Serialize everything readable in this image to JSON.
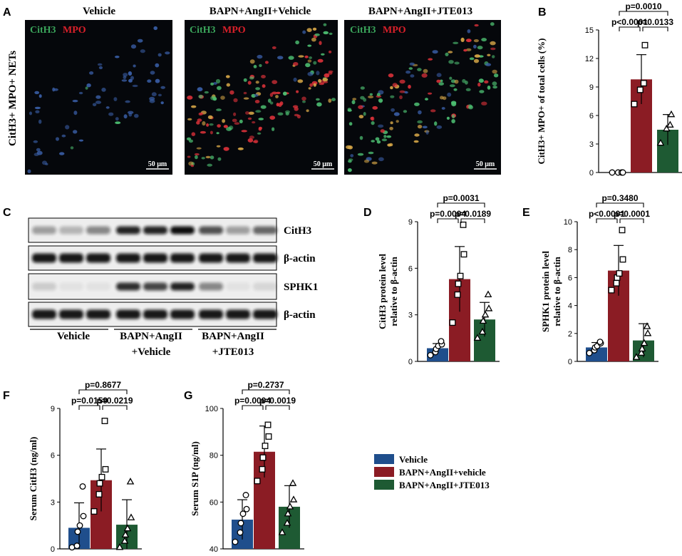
{
  "colors": {
    "vehicle": "#1f4e8c",
    "angii_vehicle": "#8b1c24",
    "jte013": "#1e5a33",
    "text": "#000000"
  },
  "panel_labels": [
    "A",
    "B",
    "C",
    "D",
    "E",
    "F",
    "G"
  ],
  "panel_a": {
    "row_label": "CitH3+ MPO+ NETs",
    "columns": [
      "Vehicle",
      "BAPN+AngII+Vehicle",
      "BAPN+AngII+JTE013"
    ],
    "stain_green": "CitH3",
    "stain_red": "MPO",
    "scalebar": "50 μm"
  },
  "panel_c": {
    "bands": [
      "CitH3",
      "β-actin",
      "SPHK1",
      "β-actin"
    ],
    "group_labels": [
      [
        "Vehicle"
      ],
      [
        "BAPN+AngII",
        "+Vehicle"
      ],
      [
        "BAPN+AngII",
        "+JTE013"
      ]
    ]
  },
  "legend": [
    "Vehicle",
    "BAPN+AngII+vehicle",
    "BAPN+AngII+JTE013"
  ],
  "chart_data": [
    {
      "id": "B",
      "type": "bar",
      "ylabel": "CitH3+ MPO+ of total cells (%)",
      "ylim": [
        0,
        15
      ],
      "yticks": [
        0,
        3,
        6,
        9,
        12,
        15
      ],
      "values": [
        0,
        9.8,
        4.5
      ],
      "errors": [
        0,
        2.6,
        1.6
      ],
      "points": [
        [
          0,
          0,
          0,
          0
        ],
        [
          7.2,
          8.7,
          9.4,
          13.4
        ],
        [
          3.1,
          4.6,
          5.0,
          6.1
        ]
      ],
      "comparisons": [
        {
          "text": "p=0.0010",
          "from": 0,
          "to": 2,
          "level": 2
        },
        {
          "text": "p<0.0001",
          "from": 0,
          "to": 1,
          "level": 1
        },
        {
          "text": "p=0.0133",
          "from": 1,
          "to": 2,
          "level": 1
        }
      ]
    },
    {
      "id": "D",
      "type": "bar",
      "ylabel": "CitH3 protein level relative to β-actin",
      "ylim": [
        0,
        9
      ],
      "yticks": [
        0,
        3,
        6,
        9
      ],
      "values": [
        0.85,
        5.3,
        2.7
      ],
      "errors": [
        0.3,
        2.1,
        1.1
      ],
      "points": [
        [
          0.4,
          0.6,
          0.8,
          1.0,
          1.1,
          1.3
        ],
        [
          2.5,
          4.3,
          5.0,
          5.5,
          6.9,
          8.8
        ],
        [
          1.5,
          1.9,
          2.6,
          3.0,
          3.4,
          4.3
        ]
      ],
      "comparisons": [
        {
          "text": "p=0.0031",
          "from": 0,
          "to": 2,
          "level": 2
        },
        {
          "text": "p=0.0004",
          "from": 0,
          "to": 1,
          "level": 1
        },
        {
          "text": "p=0.0189",
          "from": 1,
          "to": 2,
          "level": 1
        }
      ]
    },
    {
      "id": "E",
      "type": "bar",
      "ylabel": "SPHK1 protein level relative to β-actin",
      "ylim": [
        0,
        10
      ],
      "yticks": [
        0,
        2,
        4,
        6,
        8,
        10
      ],
      "values": [
        1.0,
        6.5,
        1.5
      ],
      "errors": [
        0.35,
        1.8,
        1.2
      ],
      "points": [
        [
          0.6,
          0.8,
          1.0,
          1.1,
          1.3,
          1.4
        ],
        [
          5.1,
          5.6,
          6.0,
          6.3,
          7.3,
          9.4
        ],
        [
          0.3,
          0.6,
          0.9,
          1.3,
          2.0,
          2.5
        ]
      ],
      "comparisons": [
        {
          "text": "p=0.3480",
          "from": 0,
          "to": 2,
          "level": 2
        },
        {
          "text": "p<0.0001",
          "from": 0,
          "to": 1,
          "level": 1
        },
        {
          "text": "p=0.0001",
          "from": 1,
          "to": 2,
          "level": 1
        }
      ]
    },
    {
      "id": "F",
      "type": "bar",
      "ylabel": "Serum CitH3 (ng/ml)",
      "ylim": [
        0,
        9
      ],
      "yticks": [
        0,
        3,
        6,
        9
      ],
      "values": [
        1.35,
        4.4,
        1.55
      ],
      "errors": [
        1.6,
        2.0,
        1.6
      ],
      "points": [
        [
          0.1,
          0.2,
          1.1,
          1.5,
          2.1,
          4.0
        ],
        [
          2.4,
          3.5,
          4.2,
          4.6,
          5.1,
          8.2
        ],
        [
          0.1,
          0.5,
          0.9,
          1.3,
          2.0,
          4.3
        ]
      ],
      "comparisons": [
        {
          "text": "p=0.8677",
          "from": 0,
          "to": 2,
          "level": 2
        },
        {
          "text": "p=0.0159",
          "from": 0,
          "to": 1,
          "level": 1
        },
        {
          "text": "p=0.0219",
          "from": 1,
          "to": 2,
          "level": 1
        }
      ]
    },
    {
      "id": "G",
      "type": "bar",
      "ylabel": "Serum S1P (ng/ml)",
      "ylim": [
        40,
        100
      ],
      "yticks": [
        40,
        60,
        80,
        100
      ],
      "values": [
        52.5,
        81.5,
        58
      ],
      "errors": [
        8.5,
        11,
        9
      ],
      "points": [
        [
          43,
          47,
          51,
          55,
          57,
          63
        ],
        [
          69,
          74,
          79,
          84,
          88,
          93
        ],
        [
          47,
          51,
          55,
          58,
          61,
          68
        ]
      ],
      "comparisons": [
        {
          "text": "p=0.2737",
          "from": 0,
          "to": 2,
          "level": 2
        },
        {
          "text": "p=0.0004",
          "from": 0,
          "to": 1,
          "level": 1
        },
        {
          "text": "p=0.0019",
          "from": 1,
          "to": 2,
          "level": 1
        }
      ]
    }
  ]
}
